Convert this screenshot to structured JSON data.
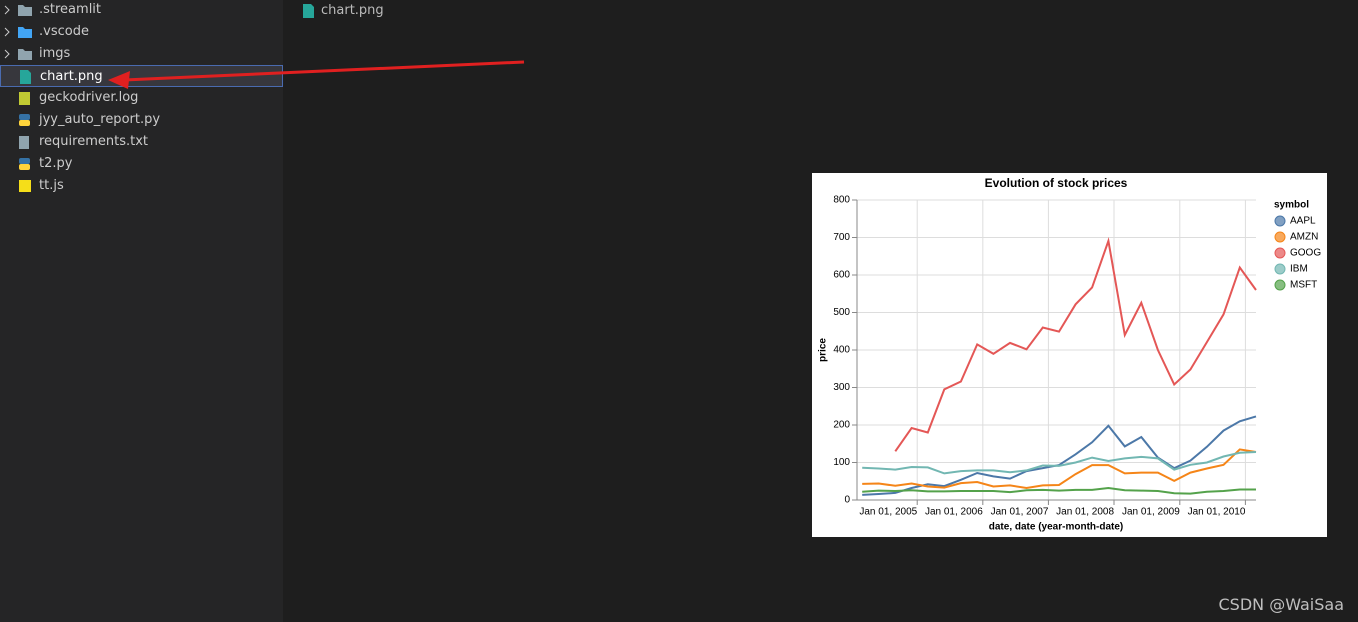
{
  "explorer": {
    "items": [
      {
        "label": ".streamlit"
      },
      {
        "label": ".vscode"
      },
      {
        "label": "imgs"
      },
      {
        "label": "chart.png"
      },
      {
        "label": "geckodriver.log"
      },
      {
        "label": "jyy_auto_report.py"
      },
      {
        "label": "requirements.txt"
      },
      {
        "label": "t2.py"
      },
      {
        "label": "tt.js"
      }
    ]
  },
  "tab": {
    "label": "chart.png"
  },
  "watermark": "CSDN @WaiSaa",
  "chart_data": {
    "type": "line",
    "title": "Evolution of stock prices",
    "x_label": "date, date (year-month-date)",
    "y_label": "price",
    "legend_title": "symbol",
    "x": [
      "2004-03-01",
      "2004-06-01",
      "2004-09-01",
      "2004-12-01",
      "2005-03-01",
      "2005-06-01",
      "2005-09-01",
      "2005-12-01",
      "2006-03-01",
      "2006-06-01",
      "2006-09-01",
      "2006-12-01",
      "2007-03-01",
      "2007-06-01",
      "2007-09-01",
      "2007-12-01",
      "2008-03-01",
      "2008-06-01",
      "2008-09-01",
      "2008-12-01",
      "2009-03-01",
      "2009-06-01",
      "2009-09-01",
      "2009-12-01",
      "2010-03-01"
    ],
    "series": [
      {
        "name": "AAPL",
        "color": "#4c78a8",
        "values": [
          13.5,
          16,
          19,
          32,
          42,
          37,
          54,
          72,
          63,
          57,
          77,
          85,
          93,
          122,
          154,
          198,
          143,
          168,
          113,
          85,
          105,
          142,
          185,
          210,
          223
        ]
      },
      {
        "name": "AMZN",
        "color": "#f58518",
        "values": [
          43,
          44,
          38,
          44,
          36,
          33,
          45,
          48,
          36,
          39,
          32,
          39,
          40,
          69,
          93,
          93,
          71,
          73,
          73,
          51,
          73,
          84,
          94,
          135,
          128
        ]
      },
      {
        "name": "GOOG",
        "color": "#e45756",
        "values": [
          null,
          null,
          130,
          192,
          180,
          295,
          316,
          415,
          390,
          419,
          402,
          460,
          449,
          522,
          567,
          691,
          440,
          526,
          400,
          308,
          348,
          421,
          495,
          620,
          560
        ]
      },
      {
        "name": "IBM",
        "color": "#72b7b2",
        "values": [
          86,
          84,
          81,
          88,
          87,
          71,
          77,
          79,
          79,
          74,
          79,
          92,
          91,
          100,
          113,
          104,
          111,
          115,
          111,
          81,
          94,
          100,
          116,
          126,
          128
        ]
      },
      {
        "name": "MSFT",
        "color": "#54a24b",
        "values": [
          22,
          25,
          24,
          26,
          23,
          23,
          24,
          24,
          24,
          21,
          26,
          27,
          25,
          27,
          27,
          32,
          26,
          25,
          24,
          18,
          17,
          22,
          24,
          28,
          28
        ]
      }
    ],
    "xlim": [
      "2004-02-01",
      "2010-03-01"
    ],
    "xticks": [
      {
        "value": "2005-01-01",
        "label": "Jan 01, 2005"
      },
      {
        "value": "2006-01-01",
        "label": "Jan 01, 2006"
      },
      {
        "value": "2007-01-01",
        "label": "Jan 01, 2007"
      },
      {
        "value": "2008-01-01",
        "label": "Jan 01, 2008"
      },
      {
        "value": "2009-01-01",
        "label": "Jan 01, 2009"
      },
      {
        "value": "2010-01-01",
        "label": "Jan 01, 2010"
      }
    ],
    "ylim": [
      0,
      800
    ],
    "yticks": [
      0,
      100,
      200,
      300,
      400,
      500,
      600,
      700,
      800
    ],
    "grid": true
  }
}
